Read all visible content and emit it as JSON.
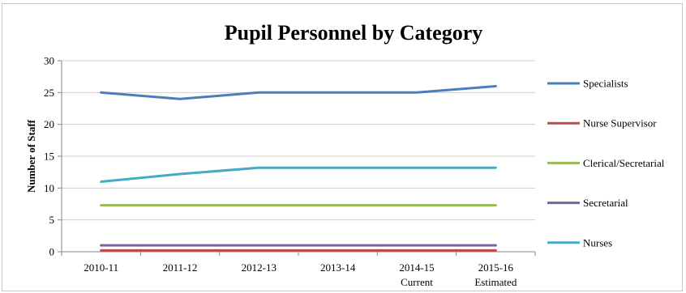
{
  "chart_data": {
    "type": "line",
    "title": "Pupil Personnel by Category",
    "xlabel": "",
    "ylabel": "Number of Staff",
    "categories": [
      [
        "2010-11"
      ],
      [
        "2011-12"
      ],
      [
        "2012-13"
      ],
      [
        "2013-14"
      ],
      [
        "2014-15",
        "Current"
      ],
      [
        "2015-16",
        "Estimated"
      ]
    ],
    "ylim": [
      0,
      30
    ],
    "yticks": [
      0,
      5,
      10,
      15,
      20,
      25,
      30
    ],
    "grid": "horizontal",
    "legend_position": "right",
    "series": [
      {
        "name": "Specialists",
        "color": "#4a7ebb",
        "values": [
          25,
          24,
          25,
          25,
          25,
          26
        ]
      },
      {
        "name": "Nurse Supervisor",
        "color": "#be4b48",
        "values": [
          0.2,
          0.2,
          0.2,
          0.2,
          0.2,
          0.2
        ]
      },
      {
        "name": "Clerical/Secretarial",
        "color": "#98b954",
        "values": [
          7.3,
          7.3,
          7.3,
          7.3,
          7.3,
          7.3
        ]
      },
      {
        "name": "Secretarial",
        "color": "#7d60a0",
        "values": [
          1,
          1,
          1,
          1,
          1,
          1
        ]
      },
      {
        "name": "Nurses",
        "color": "#46aac5",
        "values": [
          11,
          12.2,
          13.2,
          13.2,
          13.2,
          13.2
        ]
      }
    ]
  }
}
